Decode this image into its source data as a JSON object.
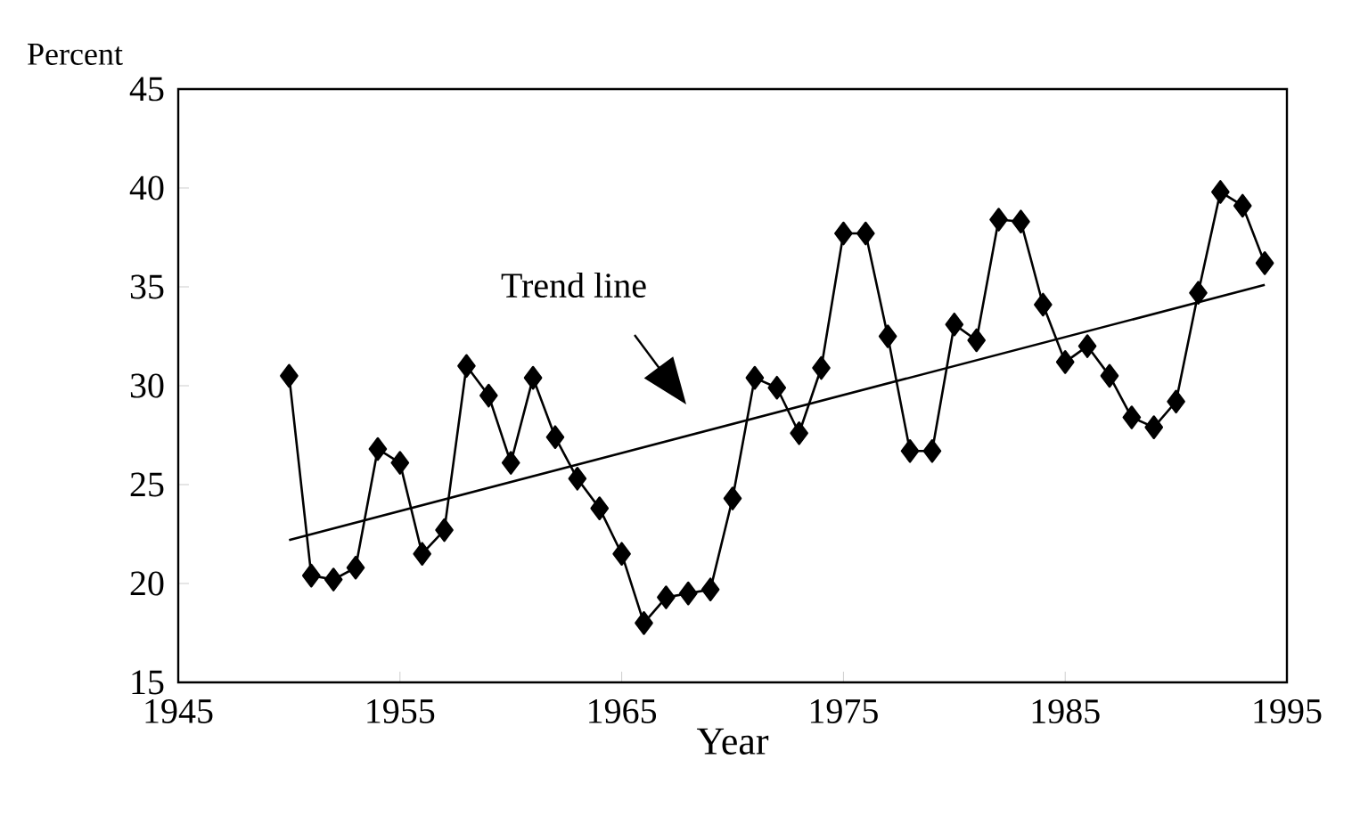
{
  "chart_data": {
    "type": "line",
    "xlabel": "Year",
    "ylabel": "Percent",
    "xlim": [
      1945,
      1995
    ],
    "ylim": [
      15,
      45
    ],
    "xticks": [
      1945,
      1955,
      1965,
      1975,
      1985,
      1995
    ],
    "yticks": [
      15,
      20,
      25,
      30,
      35,
      40,
      45
    ],
    "grid": false,
    "marker": "diamond",
    "line_style": "solid",
    "annotations": [
      "Trend line"
    ],
    "series": [
      {
        "color": "#000000",
        "x": [
          1950,
          1951,
          1952,
          1953,
          1954,
          1955,
          1956,
          1957,
          1958,
          1959,
          1960,
          1961,
          1962,
          1963,
          1964,
          1965,
          1966,
          1967,
          1968,
          1969,
          1970,
          1971,
          1972,
          1973,
          1974,
          1975,
          1976,
          1977,
          1978,
          1979,
          1980,
          1981,
          1982,
          1983,
          1984,
          1985,
          1986,
          1987,
          1988,
          1989,
          1990,
          1991,
          1992,
          1993,
          1994
        ],
        "values": [
          30.5,
          20.4,
          20.2,
          20.8,
          26.8,
          26.1,
          21.5,
          22.7,
          31.0,
          29.5,
          26.1,
          30.4,
          27.4,
          25.3,
          23.8,
          21.5,
          18.0,
          19.3,
          19.5,
          19.7,
          24.3,
          30.4,
          29.9,
          27.6,
          30.9,
          37.7,
          37.7,
          32.5,
          26.7,
          26.7,
          33.1,
          32.3,
          38.4,
          38.3,
          34.1,
          31.2,
          32.0,
          30.5,
          28.4,
          27.9,
          29.2,
          34.7,
          39.8,
          39.1,
          36.2
        ]
      },
      {
        "type": "line",
        "color": "#000000",
        "marker": "none",
        "x": [
          1950,
          1994
        ],
        "values": [
          22.2,
          35.1
        ]
      }
    ]
  }
}
